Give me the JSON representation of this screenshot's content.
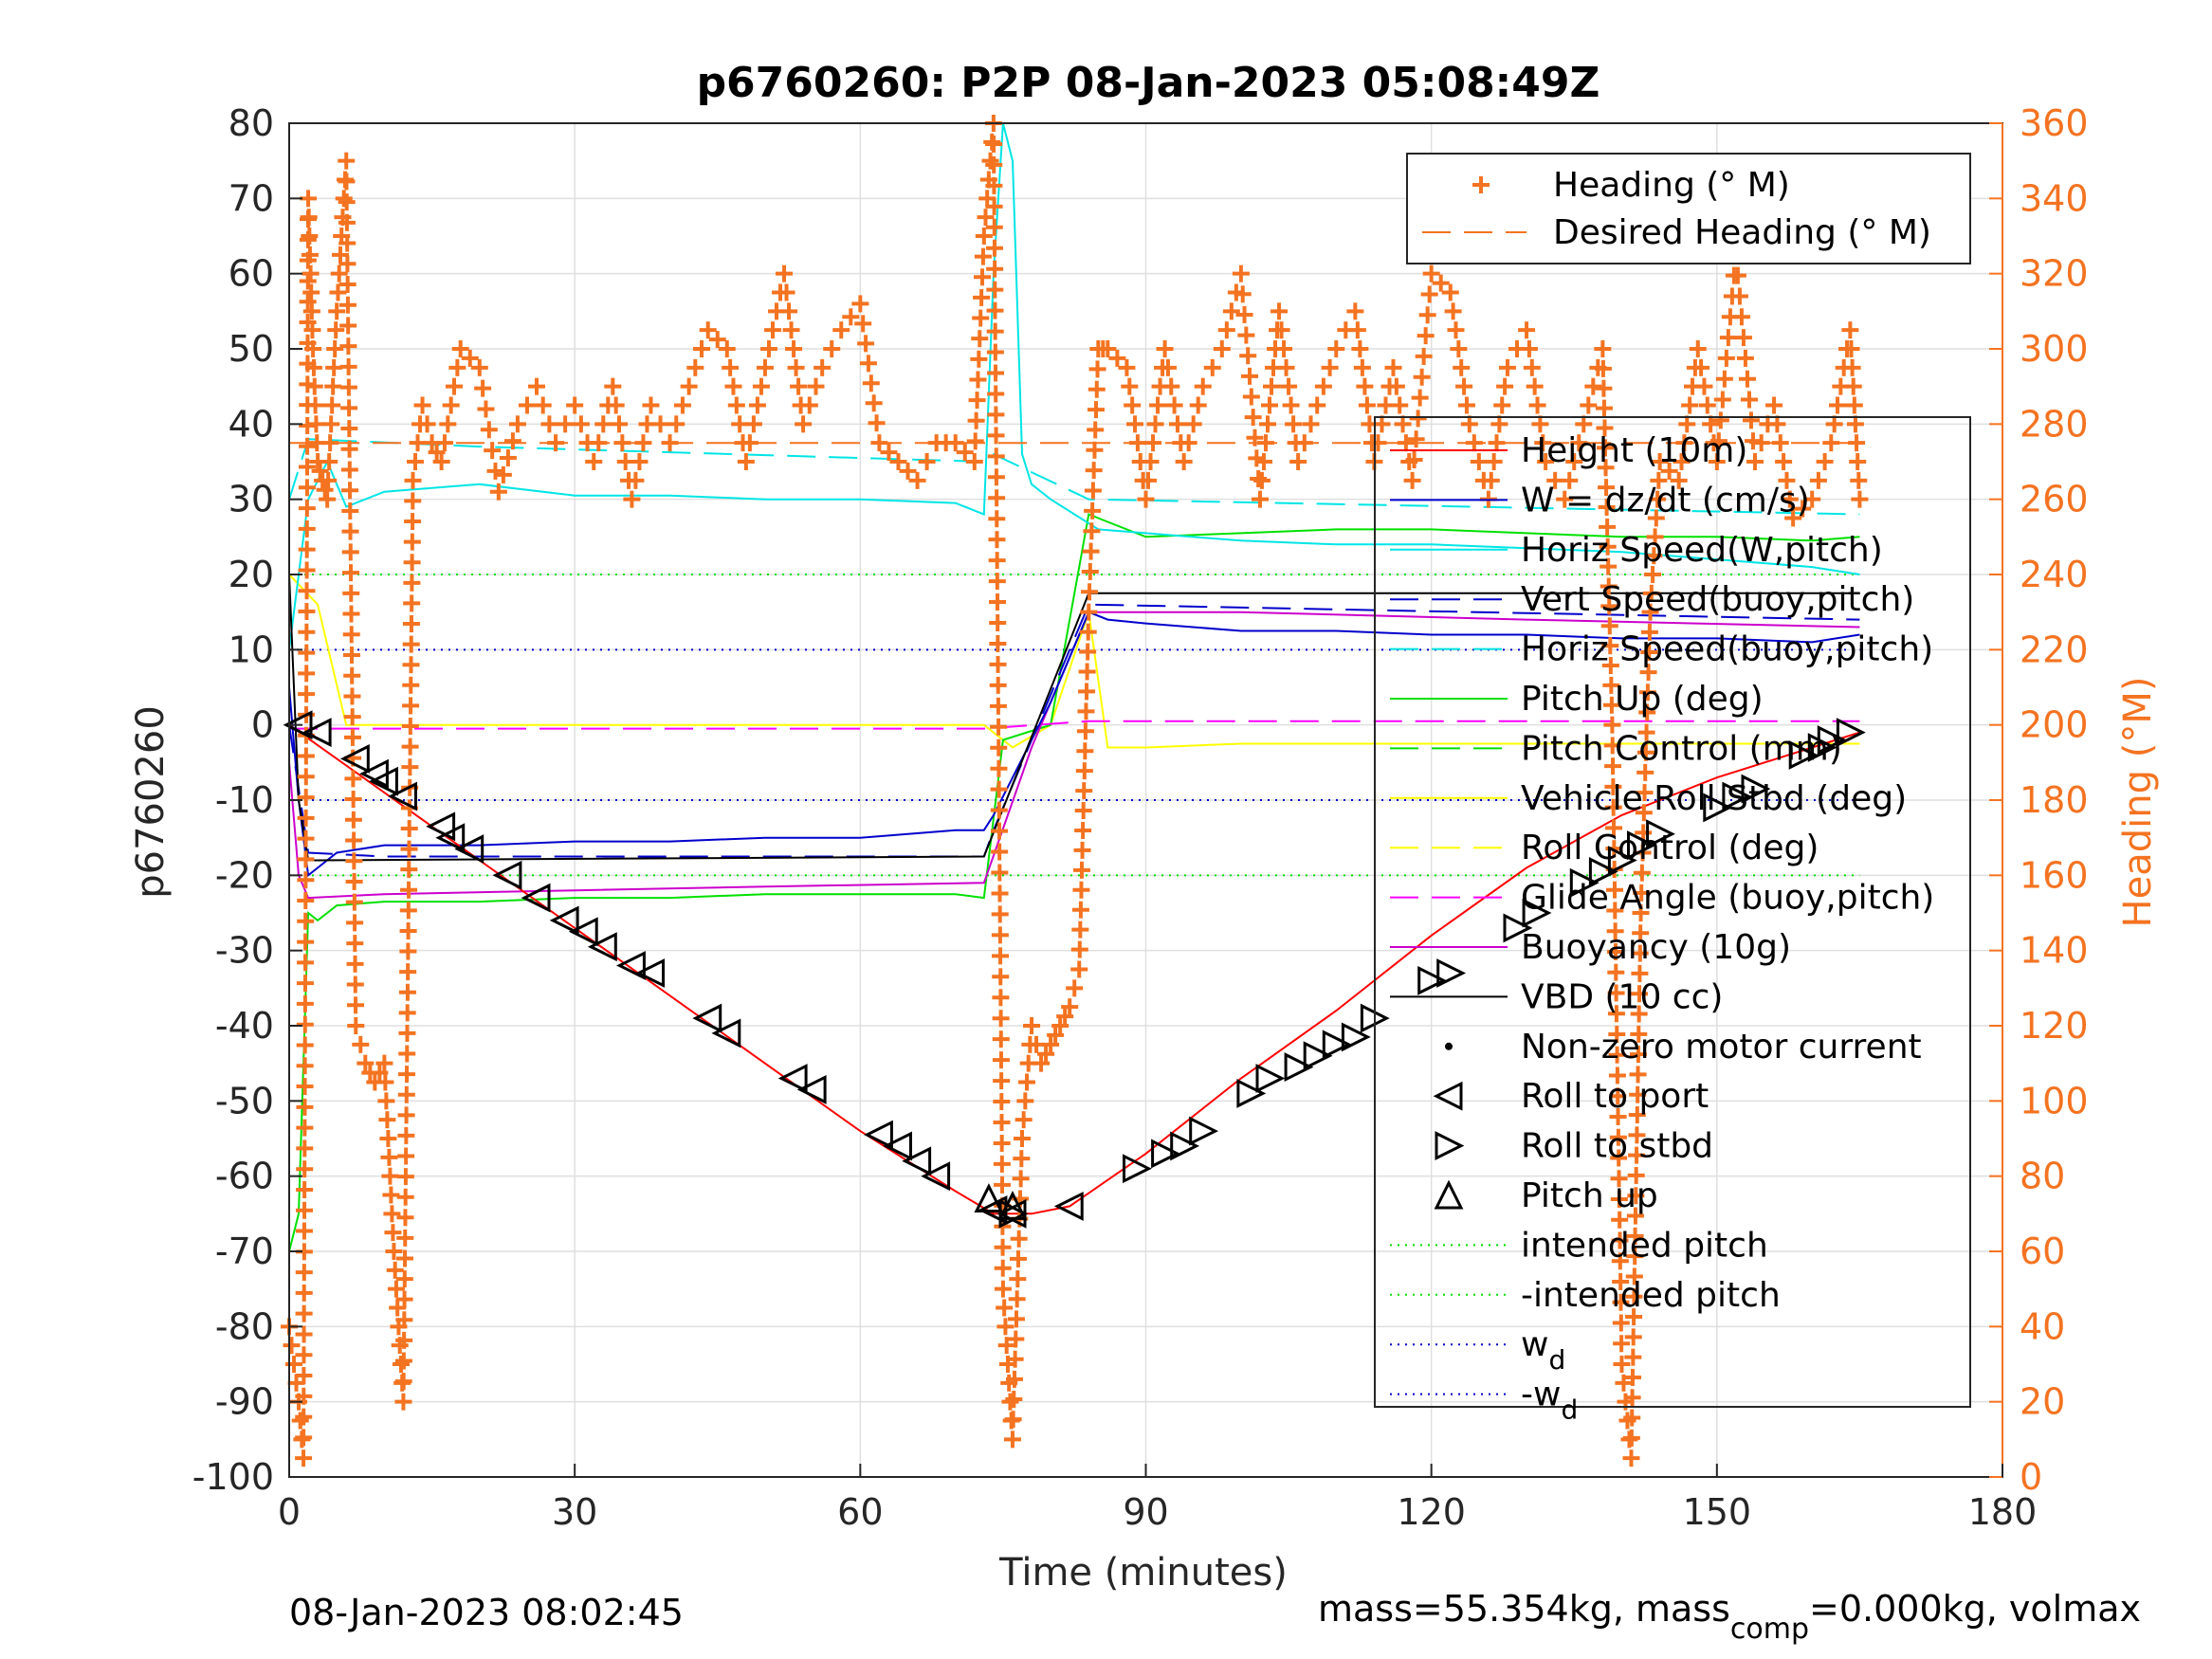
{
  "colors": {
    "heading": "#f47321",
    "height": "#ff0000",
    "w": "#0000cc",
    "horiz_speed": "#00e5e5",
    "pitch": "#00e000",
    "roll": "#ffff00",
    "glide": "#ff00ff",
    "buoyancy": "#cc00cc",
    "vbd": "#000000",
    "wd": "#0000cc",
    "intended_pitch": "#00e000"
  },
  "footer": {
    "timestamp": "08-Jan-2023 08:02:45",
    "mass_prefix": "mass=55.354kg, mass",
    "mass_sub": "comp",
    "mass_suffix": "=0.000kg, volmax"
  },
  "chart_data": {
    "type": "line",
    "title": "p6760260: P2P 08-Jan-2023 05:08:49Z",
    "xlabel": "Time (minutes)",
    "ylabel": "p6760260",
    "ylabel_right": "Heading (°M)",
    "xlim": [
      0,
      180
    ],
    "ylim": [
      -100,
      80
    ],
    "ylim_right": [
      0,
      360
    ],
    "x_ticks": [
      0,
      30,
      60,
      90,
      120,
      150,
      180
    ],
    "y_ticks": [
      80,
      70,
      60,
      50,
      40,
      30,
      20,
      10,
      0,
      -10,
      -20,
      -30,
      -40,
      -50,
      -60,
      -70,
      -80,
      -90,
      -100
    ],
    "y_ticks_right": [
      360,
      340,
      320,
      300,
      280,
      260,
      240,
      220,
      200,
      180,
      160,
      140,
      120,
      100,
      80,
      60,
      40,
      20,
      0
    ],
    "grid": true,
    "legend_top": [
      "Heading (° M)",
      "Desired Heading (° M)"
    ],
    "legend_main": [
      "Height (10m)",
      "W = dz/dt (cm/s)",
      "Horiz Speed(W,pitch)",
      "Vert Speed(buoy,pitch)",
      "Horiz Speed(buoy,pitch)",
      "Pitch Up (deg)",
      "Pitch Control (mm)",
      "Vehicle Roll Stbd (deg)",
      "Roll Control (deg)",
      "Glide Angle (buoy,pitch)",
      "Buoyancy (10g)",
      "VBD (10 cc)",
      "Non-zero motor current",
      "Roll to port",
      "Roll to stbd",
      "Pitch up",
      "intended pitch",
      "-intended pitch",
      "w",
      "-w"
    ],
    "legend_sub": "d",
    "legend_neg": "-",
    "series": [
      {
        "name": "Height (10m)",
        "axis": "left",
        "x": [
          0,
          10,
          20,
          30,
          40,
          50,
          60,
          70,
          74,
          78,
          82,
          90,
          100,
          110,
          120,
          130,
          140,
          150,
          160,
          165
        ],
        "y": [
          0,
          -9,
          -18,
          -27,
          -36,
          -45,
          -54,
          -62,
          -65,
          -65,
          -64,
          -57,
          -47,
          -38,
          -28,
          -19,
          -12,
          -7,
          -3,
          -1
        ]
      },
      {
        "name": "W = dz/dt (cm/s)",
        "axis": "left",
        "x": [
          0,
          1,
          2,
          5,
          10,
          20,
          30,
          40,
          50,
          60,
          70,
          73,
          74,
          80,
          84,
          86,
          90,
          100,
          110,
          120,
          130,
          140,
          150,
          160,
          165
        ],
        "y": [
          5,
          -10,
          -20,
          -17,
          -16,
          -16,
          -15.5,
          -15.5,
          -15,
          -15,
          -14,
          -14,
          -12,
          3,
          15,
          14,
          13.5,
          12.5,
          12.5,
          12,
          12,
          11.5,
          11.5,
          11,
          12
        ]
      },
      {
        "name": "Horiz Speed(W,pitch)",
        "axis": "left",
        "x": [
          0,
          2,
          4,
          6,
          10,
          20,
          30,
          40,
          50,
          60,
          70,
          73,
          74,
          75,
          76,
          77,
          78,
          80,
          85,
          90,
          100,
          110,
          120,
          130,
          140,
          150,
          160,
          165
        ],
        "y": [
          10,
          30,
          35,
          29,
          31,
          32,
          30.5,
          30.5,
          30,
          30,
          29.5,
          28,
          60,
          80,
          75,
          36,
          32,
          30,
          26,
          25.5,
          24.5,
          24,
          24,
          23.5,
          23,
          22,
          21,
          20
        ]
      },
      {
        "name": "Vert Speed(buoy,pitch)",
        "axis": "left",
        "x": [
          0,
          2,
          10,
          73,
          74,
          84,
          165
        ],
        "y": [
          0,
          -17,
          -17.5,
          -17.5,
          -14,
          16,
          14
        ]
      },
      {
        "name": "Horiz Speed(buoy,pitch)",
        "axis": "left",
        "x": [
          0,
          2,
          20,
          73,
          74,
          84,
          165
        ],
        "y": [
          30,
          38,
          37,
          35,
          36,
          30,
          28
        ]
      },
      {
        "name": "Pitch Up (deg)",
        "axis": "left",
        "x": [
          0,
          1,
          2,
          3,
          5,
          10,
          20,
          30,
          40,
          50,
          60,
          70,
          73,
          75,
          80,
          84,
          86,
          90,
          100,
          110,
          120,
          130,
          140,
          150,
          160,
          165
        ],
        "y": [
          -70,
          -65,
          -25,
          -26,
          -24,
          -23.5,
          -23.5,
          -23,
          -23,
          -22.5,
          -22.5,
          -22.5,
          -23,
          -2,
          0,
          28,
          27,
          25,
          25.5,
          26,
          26,
          25.5,
          25,
          25,
          24.5,
          25
        ]
      },
      {
        "name": "Roll Control (deg)",
        "axis": "left",
        "x": [
          0,
          3,
          6,
          10,
          20,
          30,
          40,
          50,
          60,
          70,
          73,
          76,
          80,
          84,
          86,
          90,
          100,
          110,
          120,
          130,
          140,
          150,
          160,
          165
        ],
        "y": [
          20,
          16,
          0,
          0,
          0,
          0,
          0,
          0,
          0,
          0,
          0,
          -3,
          0,
          15,
          -3,
          -3,
          -2.5,
          -2.5,
          -2.5,
          -2.5,
          -2.5,
          -2.5,
          -2.5,
          -2.5
        ]
      },
      {
        "name": "Glide Angle (buoy,pitch)",
        "axis": "left",
        "x": [
          0,
          73,
          84,
          165
        ],
        "y": [
          -0.5,
          -0.5,
          0.5,
          0.5
        ]
      },
      {
        "name": "Buoyancy (10g)",
        "axis": "left",
        "x": [
          0,
          1,
          2,
          10,
          30,
          50,
          73,
          78,
          84,
          100,
          130,
          165
        ],
        "y": [
          -5,
          -20,
          -23,
          -22.5,
          -22,
          -21.5,
          -21,
          -3,
          15,
          15,
          14,
          13
        ]
      },
      {
        "name": "VBD (10 cc)",
        "axis": "left",
        "x": [
          0,
          1,
          2,
          3,
          73,
          84,
          165
        ],
        "y": [
          20,
          -10,
          -18,
          -18,
          -17.5,
          17.5,
          17.5
        ]
      },
      {
        "name": "Heading (° M)",
        "axis": "right",
        "x": [
          0,
          1,
          1.5,
          2,
          2.5,
          3,
          3.5,
          4,
          5,
          6,
          7,
          8,
          9,
          10,
          11,
          12,
          13,
          14,
          15,
          16,
          17,
          18,
          20,
          22,
          24,
          26,
          28,
          30,
          32,
          34,
          36,
          38,
          40,
          42,
          44,
          46,
          48,
          50,
          52,
          54,
          56,
          58,
          60,
          62,
          64,
          66,
          68,
          70,
          72,
          73,
          74,
          75,
          76,
          77,
          78,
          79,
          80,
          81,
          82,
          83,
          84,
          85,
          86,
          88,
          90,
          92,
          94,
          96,
          98,
          100,
          102,
          104,
          106,
          108,
          110,
          112,
          114,
          116,
          118,
          120,
          122,
          124,
          126,
          128,
          130,
          132,
          134,
          136,
          138,
          139,
          140,
          141,
          142,
          143,
          144,
          146,
          148,
          150,
          152,
          154,
          156,
          158,
          160,
          162,
          164,
          165
        ],
        "y": [
          40,
          20,
          5,
          340,
          300,
          270,
          265,
          260,
          310,
          350,
          120,
          110,
          105,
          110,
          60,
          20,
          265,
          285,
          275,
          270,
          285,
          300,
          295,
          262,
          280,
          290,
          275,
          285,
          270,
          290,
          260,
          285,
          275,
          290,
          305,
          300,
          270,
          295,
          320,
          280,
          295,
          305,
          312,
          275,
          270,
          265,
          275,
          275,
          270,
          330,
          360,
          50,
          10,
          90,
          120,
          110,
          115,
          120,
          125,
          135,
          230,
          300,
          300,
          295,
          260,
          300,
          270,
          290,
          300,
          320,
          260,
          310,
          270,
          285,
          300,
          310,
          270,
          295,
          265,
          320,
          315,
          280,
          260,
          295,
          305,
          270,
          260,
          280,
          300,
          200,
          30,
          5,
          150,
          230,
          270,
          265,
          300,
          270,
          325,
          270,
          285,
          255,
          260,
          275,
          305,
          260
        ]
      },
      {
        "name": "Desired Heading (° M)",
        "axis": "right",
        "x": [
          0,
          165
        ],
        "y": [
          275,
          275
        ]
      }
    ],
    "intended_pitch": 20,
    "wd": 10,
    "markers": {
      "roll_to_port": {
        "x": [
          1,
          3,
          7,
          9,
          10,
          12,
          16,
          17,
          19,
          23,
          26,
          29,
          31,
          33,
          36,
          38,
          44,
          46,
          53,
          55,
          62,
          64,
          66,
          68,
          74,
          76,
          82
        ],
        "y": [
          0,
          -1,
          -4.5,
          -6.5,
          -7.5,
          -9.5,
          -13.5,
          -15,
          -16.5,
          -20,
          -23,
          -26,
          -27.5,
          -29.5,
          -32,
          -33,
          -39,
          -41,
          -47,
          -48.5,
          -54.5,
          -56,
          -58,
          -60,
          -64.5,
          -65,
          -64
        ]
      },
      "roll_to_stbd": {
        "x": [
          76,
          89,
          92,
          94,
          96,
          101,
          103,
          106,
          108,
          110,
          112,
          114,
          120,
          122,
          129,
          131,
          136,
          138,
          140,
          142,
          144,
          150,
          152,
          154,
          159,
          161,
          162,
          164
        ],
        "y": [
          -65,
          -59,
          -57,
          -56,
          -54,
          -49,
          -47,
          -45.5,
          -44,
          -42.5,
          -41.5,
          -39,
          -34,
          -33,
          -27,
          -25,
          -21,
          -19.5,
          -18,
          -16,
          -14.5,
          -11,
          -9.5,
          -8.5,
          -4,
          -3,
          -2,
          -1
        ]
      },
      "pitch_up": {
        "x": [
          73.5,
          76
        ],
        "y": [
          -63,
          -64
        ]
      }
    }
  }
}
